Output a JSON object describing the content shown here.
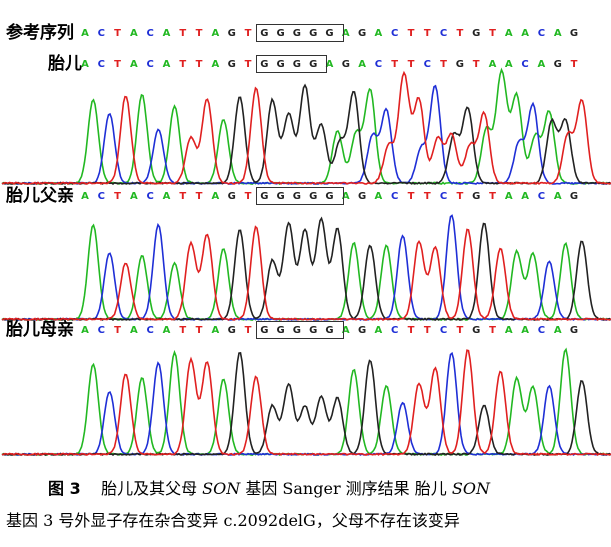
{
  "tracks": [
    {
      "id": "reference",
      "label": "参考序列",
      "sequence": "ACTACATTAGTGGGGGAGACTTCTGTAACAG",
      "boxed": [
        11,
        15
      ],
      "chromatogram": false
    },
    {
      "id": "fetus",
      "label": "胎儿",
      "sequence": "ACTACATTAGTGGGGAGACTTCTGTAACAGT",
      "boxed": [
        11,
        14
      ],
      "chromatogram": true,
      "heterozygous_from": 15
    },
    {
      "id": "father",
      "label": "胎儿父亲",
      "sequence": "ACTACATTAGTGGGGGAGACTTCTGTAACAG",
      "boxed": [
        11,
        15
      ],
      "chromatogram": true
    },
    {
      "id": "mother",
      "label": "胎儿母亲",
      "sequence": "ACTACATTAGTGGGGGAGACTTCTGTAACAG",
      "boxed": [
        11,
        15
      ],
      "chromatogram": true
    }
  ],
  "base_colors": {
    "A": "#22b822",
    "C": "#1f2fd6",
    "G": "#222222",
    "T": "#e02020"
  },
  "caption": {
    "figure_number": "图 3",
    "line1_part1": "胎儿及其父母",
    "gene1": "SON",
    "line1_part2": "基因 Sanger 测序结果    胎儿",
    "gene2": "SON",
    "line2": "基因 3 号外显子存在杂合变异 c.2092delG，父母不存在该变异"
  }
}
